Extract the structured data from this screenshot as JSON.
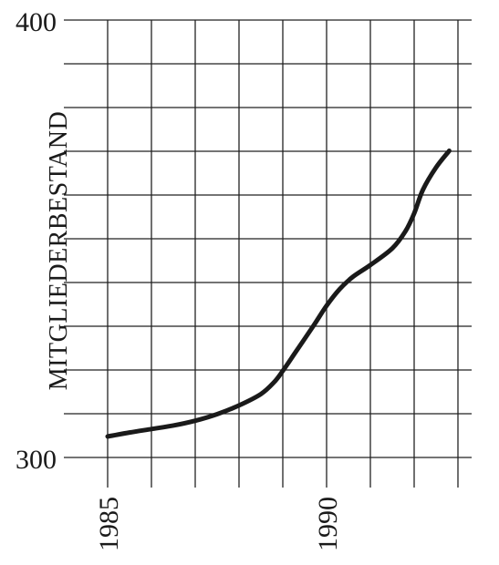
{
  "chart_data": {
    "type": "line",
    "title": "",
    "xlabel": "",
    "ylabel": "MITGLIEDERBESTAND",
    "xlim": [
      1985,
      1993.5
    ],
    "ylim": [
      300,
      400
    ],
    "x_ticks_labeled": [
      "1985",
      "1990"
    ],
    "y_ticks_labeled": [
      "300",
      "400"
    ],
    "x_grid_step": 1,
    "y_grid_step": 10,
    "grid": true,
    "legend": "none",
    "line_color": "#1a1a1a",
    "series": [
      {
        "x": [
          1985,
          1985.5,
          1986,
          1986.5,
          1987,
          1987.5,
          1988,
          1988.5,
          1988.8,
          1989,
          1989.3,
          1989.7,
          1990,
          1990.3,
          1990.6,
          1991,
          1991.5,
          1991.8,
          1992,
          1992.2,
          1992.5,
          1992.8
        ],
        "y": [
          304.8,
          305.7,
          306.5,
          307.3,
          308.4,
          309.9,
          311.9,
          314.5,
          317.2,
          319.8,
          324.2,
          330.1,
          334.7,
          338.5,
          341.3,
          344,
          347.8,
          351.7,
          355.8,
          361.2,
          366.3,
          370.1
        ]
      }
    ]
  }
}
